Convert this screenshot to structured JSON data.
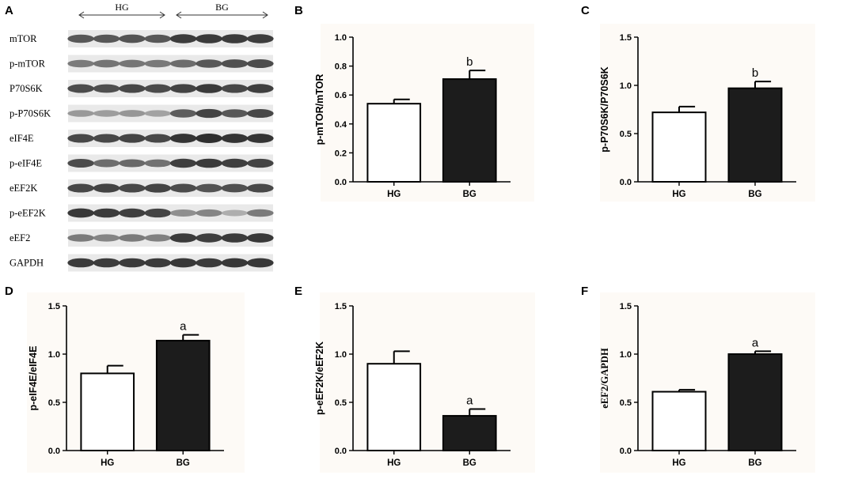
{
  "blot": {
    "panel_letter": "A",
    "groups": [
      {
        "label": "HG",
        "lanes": 4
      },
      {
        "label": "BG",
        "lanes": 4
      }
    ],
    "bands": [
      {
        "label": "mTOR",
        "hg": [
          0.72,
          0.72,
          0.74,
          0.72
        ],
        "bg": [
          0.85,
          0.86,
          0.86,
          0.85
        ]
      },
      {
        "label": "p-mTOR",
        "hg": [
          0.55,
          0.58,
          0.57,
          0.56
        ],
        "bg": [
          0.62,
          0.72,
          0.76,
          0.78
        ]
      },
      {
        "label": "P70S6K",
        "hg": [
          0.78,
          0.76,
          0.8,
          0.78
        ],
        "bg": [
          0.82,
          0.86,
          0.8,
          0.84
        ]
      },
      {
        "label": "p-P70S6K",
        "hg": [
          0.4,
          0.38,
          0.42,
          0.36
        ],
        "bg": [
          0.7,
          0.82,
          0.72,
          0.8
        ]
      },
      {
        "label": "eIF4E",
        "hg": [
          0.8,
          0.8,
          0.82,
          0.8
        ],
        "bg": [
          0.9,
          0.92,
          0.9,
          0.9
        ]
      },
      {
        "label": "p-eIF4E",
        "hg": [
          0.78,
          0.62,
          0.64,
          0.6
        ],
        "bg": [
          0.84,
          0.86,
          0.84,
          0.82
        ]
      },
      {
        "label": "eEF2K",
        "hg": [
          0.8,
          0.82,
          0.8,
          0.82
        ],
        "bg": [
          0.78,
          0.74,
          0.76,
          0.8
        ]
      },
      {
        "label": "p-eEF2K",
        "hg": [
          0.88,
          0.86,
          0.84,
          0.82
        ],
        "bg": [
          0.45,
          0.5,
          0.3,
          0.55
        ]
      },
      {
        "label": "eEF2",
        "hg": [
          0.55,
          0.5,
          0.55,
          0.52
        ],
        "bg": [
          0.86,
          0.84,
          0.86,
          0.88
        ]
      },
      {
        "label": "GAPDH",
        "hg": [
          0.86,
          0.86,
          0.86,
          0.86
        ],
        "bg": [
          0.88,
          0.86,
          0.88,
          0.88
        ]
      }
    ]
  },
  "chart_data": [
    {
      "panel": "B",
      "type": "bar",
      "categories": [
        "HG",
        "BG"
      ],
      "values": [
        0.54,
        0.71
      ],
      "errors": [
        0.03,
        0.06
      ],
      "annotations": [
        "",
        "b"
      ],
      "ylabel": "p-mTOR/mTOR",
      "ylim": [
        0,
        1.0
      ],
      "yticks": [
        "0.0",
        "0.2",
        "0.4",
        "0.6",
        "0.8",
        "1.0"
      ],
      "bar_fills": [
        "#ffffff",
        "#1c1c1c"
      ]
    },
    {
      "panel": "C",
      "type": "bar",
      "categories": [
        "HG",
        "BG"
      ],
      "values": [
        0.72,
        0.97
      ],
      "errors": [
        0.06,
        0.07
      ],
      "annotations": [
        "",
        "b"
      ],
      "ylabel": "p-P70S6K/P70S6K",
      "ylim": [
        0,
        1.5
      ],
      "yticks": [
        "0.0",
        "0.5",
        "1.0",
        "1.5"
      ],
      "bar_fills": [
        "#ffffff",
        "#1c1c1c"
      ]
    },
    {
      "panel": "D",
      "type": "bar",
      "categories": [
        "HG",
        "BG"
      ],
      "values": [
        0.8,
        1.14
      ],
      "errors": [
        0.08,
        0.06
      ],
      "annotations": [
        "",
        "a"
      ],
      "ylabel": "p-eIF4E/eIF4E",
      "ylim": [
        0,
        1.5
      ],
      "yticks": [
        "0.0",
        "0.5",
        "1.0",
        "1.5"
      ],
      "bar_fills": [
        "#ffffff",
        "#1c1c1c"
      ]
    },
    {
      "panel": "E",
      "type": "bar",
      "categories": [
        "HG",
        "BG"
      ],
      "values": [
        0.9,
        0.36
      ],
      "errors": [
        0.13,
        0.07
      ],
      "annotations": [
        "",
        "a"
      ],
      "ylabel": "p-eEF2K/eEF2K",
      "ylim": [
        0,
        1.5
      ],
      "yticks": [
        "0.0",
        "0.5",
        "1.0",
        "1.5"
      ],
      "bar_fills": [
        "#ffffff",
        "#1c1c1c"
      ]
    },
    {
      "panel": "F",
      "type": "bar",
      "categories": [
        "HG",
        "BG"
      ],
      "values": [
        0.61,
        1.0
      ],
      "errors": [
        0.02,
        0.03
      ],
      "annotations": [
        "",
        "a"
      ],
      "ylabel": "eEF2/GAPDH",
      "ylim": [
        0,
        1.5
      ],
      "yticks": [
        "0.0",
        "0.5",
        "1.0",
        "1.5"
      ],
      "bar_fills": [
        "#ffffff",
        "#1c1c1c"
      ]
    }
  ]
}
